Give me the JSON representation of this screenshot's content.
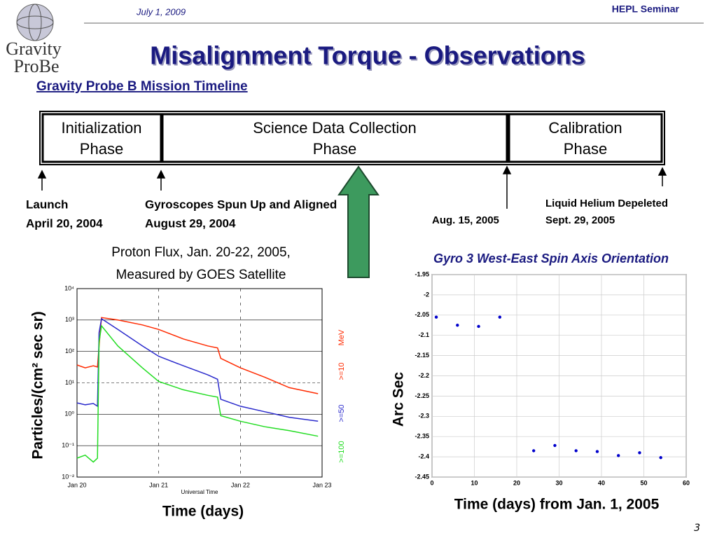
{
  "header": {
    "date": "July 1, 2009",
    "seminar": "HEPL Seminar",
    "logo": [
      "Gravity",
      "ProBe"
    ],
    "page": "3"
  },
  "title": "Misalignment Torque - Observations",
  "timeline": {
    "heading": "Gravity Probe B Mission Timeline",
    "phases": [
      [
        "Initialization",
        "Phase"
      ],
      [
        "Science Data Collection",
        "Phase"
      ],
      [
        "Calibration",
        "Phase"
      ]
    ],
    "events": [
      [
        "Launch",
        "April 20, 2004"
      ],
      [
        "Gyroscopes Spun Up and Aligned",
        "August 29, 2004"
      ],
      [
        "Aug. 15, 2005"
      ],
      [
        "Liquid Helium Depeleted",
        "Sept. 29, 2005"
      ]
    ]
  },
  "chart_data": [
    {
      "type": "line",
      "title": [
        "Proton Flux, Jan. 20-22, 2005,",
        "Measured by GOES Satellite"
      ],
      "y_label": "Particles/(cm² sec sr)",
      "x_label": "Time (days)",
      "axis_label": "Universal Time",
      "unit": "MeV",
      "log_y": true,
      "grid": true,
      "xlim": [
        0,
        3
      ],
      "xticks": [
        {
          "value": 0,
          "label": "Jan 20"
        },
        {
          "value": 1,
          "label": "Jan 21"
        },
        {
          "value": 2,
          "label": "Jan 22"
        },
        {
          "value": 3,
          "label": "Jan 23"
        }
      ],
      "ylim": [
        0.01,
        10000
      ],
      "yticks": [
        {
          "value": 10000,
          "label": "10⁴"
        },
        {
          "value": 1000,
          "label": "10³"
        },
        {
          "value": 100,
          "label": "10²"
        },
        {
          "value": 10,
          "label": "10¹"
        },
        {
          "value": 1,
          "label": "10⁰"
        },
        {
          "value": 0.1,
          "label": "10⁻¹"
        },
        {
          "value": 0.01,
          "label": "10⁻²"
        }
      ],
      "series": [
        {
          "name": ">=10",
          "color": "#ff2a00",
          "x": [
            0,
            0.1,
            0.2,
            0.25,
            0.27,
            0.3,
            0.5,
            0.8,
            1.0,
            1.3,
            1.6,
            1.72,
            1.76,
            2.0,
            2.3,
            2.6,
            2.95
          ],
          "values": [
            37,
            30,
            35,
            32,
            150,
            1200,
            1000,
            700,
            500,
            250,
            150,
            130,
            60,
            30,
            15,
            7,
            4.5
          ]
        },
        {
          "name": ">=50",
          "color": "#2a2acc",
          "x": [
            0,
            0.1,
            0.2,
            0.25,
            0.27,
            0.3,
            0.5,
            0.8,
            1.0,
            1.3,
            1.6,
            1.72,
            1.76,
            2.0,
            2.3,
            2.6,
            2.95
          ],
          "values": [
            2.3,
            2,
            2.2,
            1.8,
            400,
            1100,
            500,
            150,
            70,
            35,
            18,
            13,
            3,
            1.8,
            1.2,
            0.8,
            0.6
          ]
        },
        {
          "name": ">=100",
          "color": "#22dd22",
          "x": [
            0,
            0.1,
            0.2,
            0.25,
            0.27,
            0.3,
            0.5,
            0.8,
            1.0,
            1.3,
            1.6,
            1.72,
            1.76,
            2.0,
            2.3,
            2.6,
            2.95
          ],
          "values": [
            0.04,
            0.05,
            0.03,
            0.04,
            200,
            650,
            150,
            30,
            11,
            6,
            4,
            3.5,
            0.9,
            0.6,
            0.4,
            0.3,
            0.2
          ]
        }
      ]
    },
    {
      "type": "scatter",
      "title": "Gyro 3 West-East Spin Axis Orientation",
      "y_label": "Arc Sec",
      "x_label": "Time (days) from Jan. 1, 2005",
      "grid": true,
      "color": "#0000cc",
      "xlim": [
        0,
        60
      ],
      "xticks": [
        0,
        10,
        20,
        30,
        40,
        50,
        60
      ],
      "ylim": [
        -2.45,
        -1.95
      ],
      "yticks": [
        -1.95,
        -2,
        -2.05,
        -2.1,
        -2.15,
        -2.2,
        -2.25,
        -2.3,
        -2.35,
        -2.4,
        -2.45
      ],
      "x": [
        1,
        6,
        11,
        16,
        24,
        29,
        34,
        39,
        44,
        49,
        54
      ],
      "values": [
        -2.055,
        -2.075,
        -2.078,
        -2.055,
        -2.385,
        -2.372,
        -2.385,
        -2.387,
        -2.397,
        -2.39,
        -2.402
      ]
    }
  ]
}
